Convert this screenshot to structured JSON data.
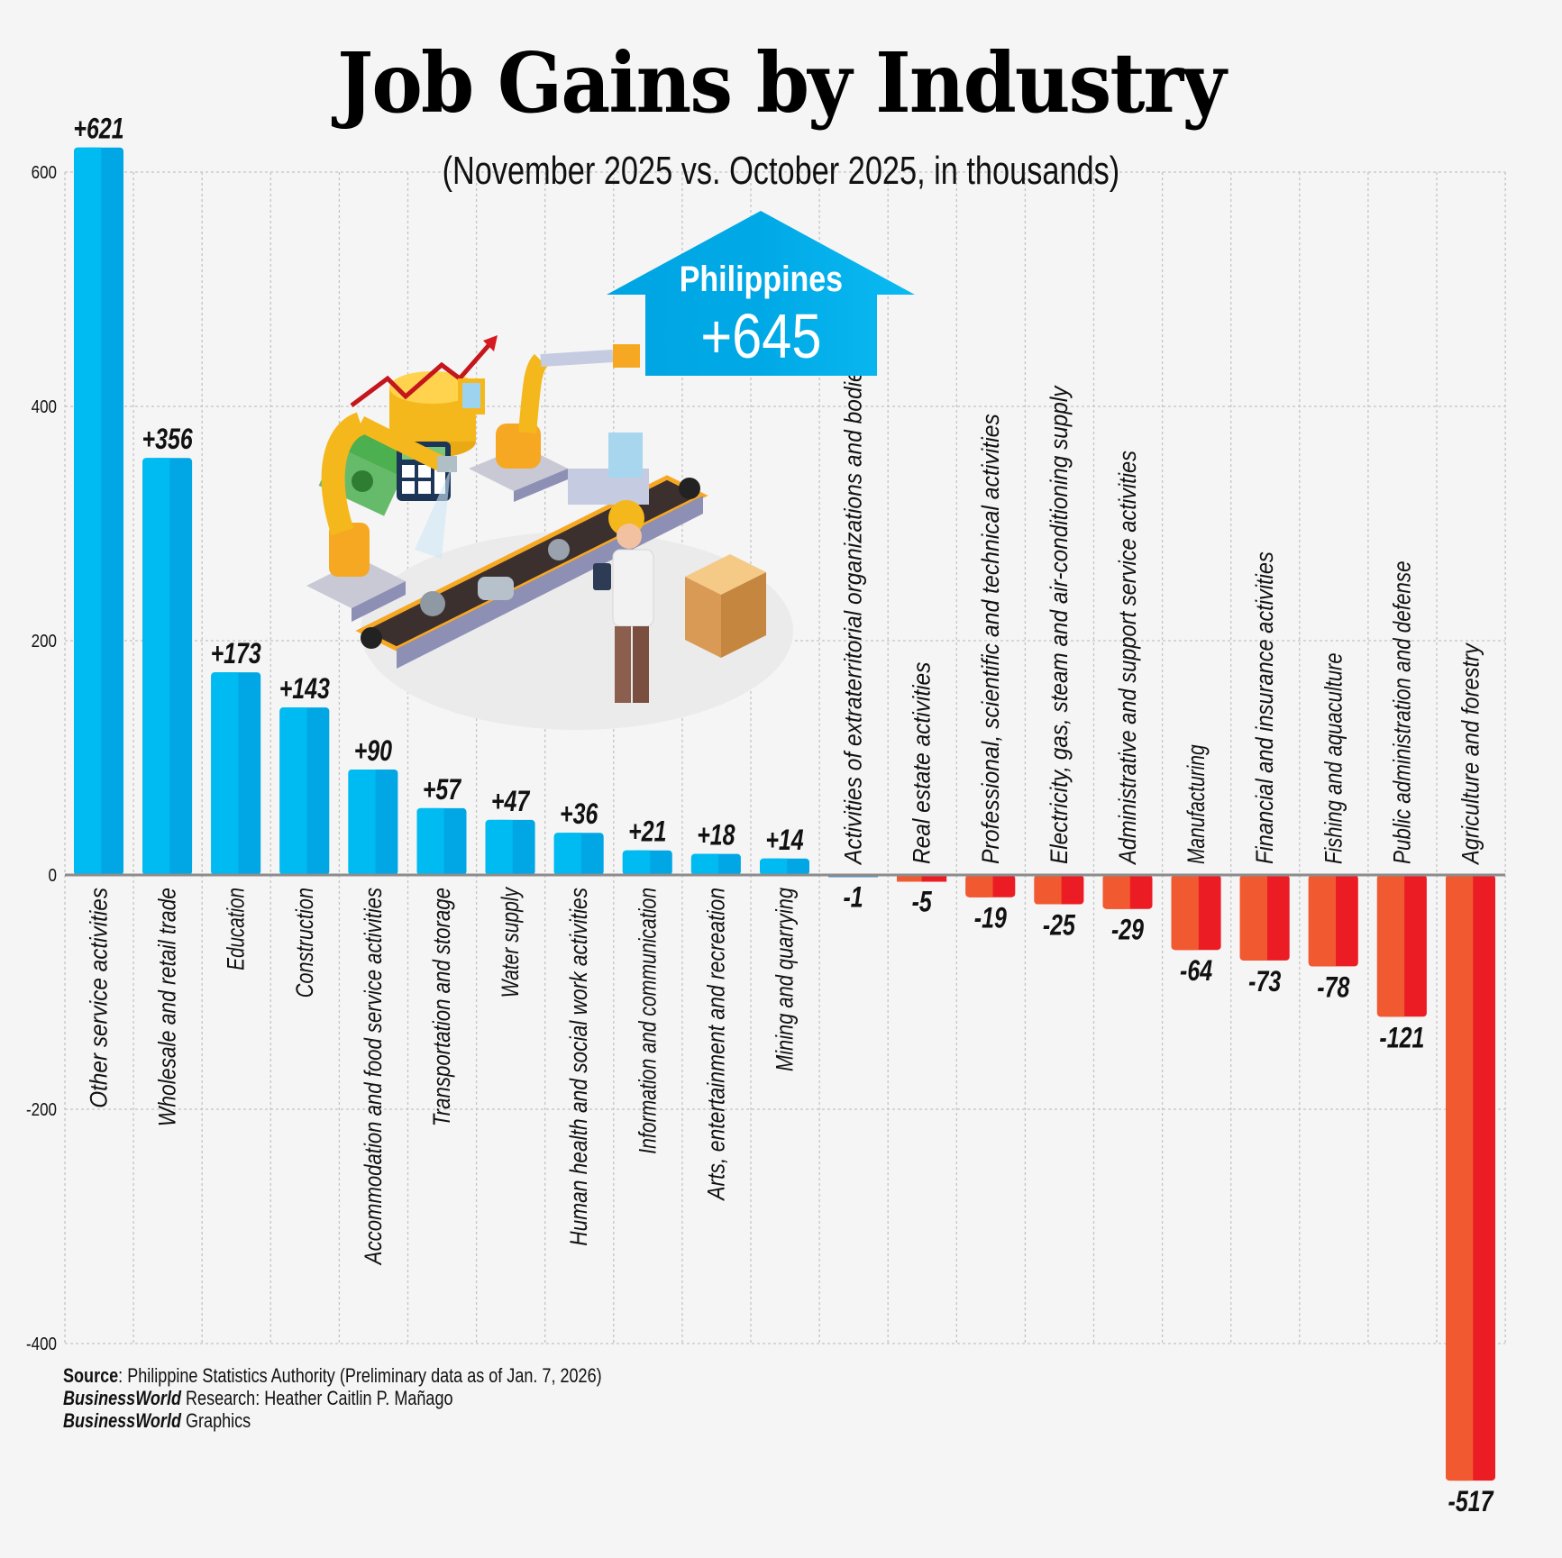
{
  "header": {
    "title": "Job Gains by Industry",
    "subtitle": "(November 2025 vs. October 2025, in thousands)"
  },
  "callout": {
    "label": "Philippines",
    "value": "+645",
    "color": "#00A9E6",
    "icon": "up-arrow-icon"
  },
  "illustration": {
    "icon": "factory-automation-illustration"
  },
  "footer": {
    "source_label": "Source",
    "source_text": ": Philippine Statistics Authority (Preliminary data as of Jan. 7, 2026)",
    "research_brand": "BusinessWorld",
    "research_label": " Research",
    "research_text": ": Heather Caitlin P. Mañago",
    "graphics_brand": "BusinessWorld",
    "graphics_label": " Graphics"
  },
  "chart_data": {
    "type": "bar",
    "title": "Job Gains by Industry",
    "subtitle": "(November 2025 vs. October 2025, in thousands)",
    "xlabel": "",
    "ylabel": "",
    "ylim": [
      -400,
      600
    ],
    "yticks": [
      600,
      400,
      200,
      0,
      -200,
      -400
    ],
    "ytick_labels": [
      "600",
      "400",
      "200",
      "0",
      "-200",
      "-400"
    ],
    "grid": true,
    "colors": {
      "positive_light": "#00BAF2",
      "positive_dark": "#00A7E4",
      "negative_light": "#F15A30",
      "negative_dark": "#EC1C24",
      "neutral": "#4A90C2"
    },
    "categories": [
      "Other service activities",
      "Wholesale and retail trade",
      "Education",
      "Construction",
      "Accommodation and food service activities",
      "Transportation and storage",
      "Water supply",
      "Human health and social work activities",
      "Information and communication",
      "Arts, entertainment and recreation",
      "Mining and quarrying",
      "Activities of extraterritorial organizations and bodies",
      "Real estate activities",
      "Professional, scientific and technical activities",
      "Electricity, gas,  steam and air-conditioning supply",
      "Administrative and support service activities",
      "Manufacturing",
      "Financial and insurance activities",
      "Fishing and aquaculture",
      "Public administration and defense",
      "Agriculture and forestry"
    ],
    "values": [
      621,
      356,
      173,
      143,
      90,
      57,
      47,
      36,
      21,
      18,
      14,
      -1,
      -5,
      -19,
      -25,
      -29,
      -64,
      -73,
      -78,
      -121,
      -517
    ],
    "value_labels": [
      "+621",
      "+356",
      "+173",
      "+143",
      "+90",
      "+57",
      "+47",
      "+36",
      "+21",
      "+18",
      "+14",
      "-1",
      "-5",
      "-19",
      "-25",
      "-29",
      "-64",
      "-73",
      "-78",
      "-121",
      "-517"
    ]
  }
}
